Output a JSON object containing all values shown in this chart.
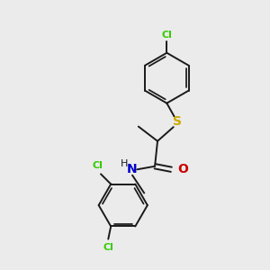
{
  "background_color": "#ebebeb",
  "bond_color": "#1a1a1a",
  "atom_colors": {
    "Cl": "#33cc00",
    "S": "#ccaa00",
    "N": "#0000cc",
    "O": "#cc0000"
  },
  "figsize": [
    3.0,
    3.0
  ],
  "dpi": 100
}
